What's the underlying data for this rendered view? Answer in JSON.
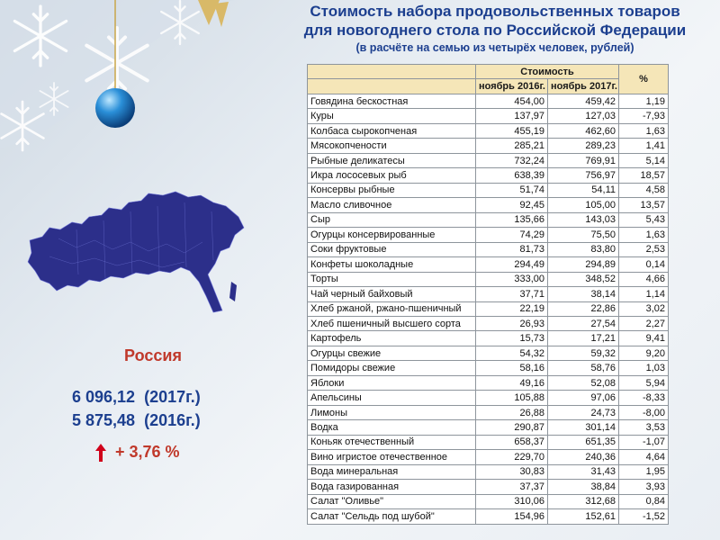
{
  "title": {
    "line1": "Стоимость набора продовольственных товаров",
    "line2": "для новогоднего стола по Российской Федерации",
    "line3": "(в расчёте на семью из четырёх человек, рублей)"
  },
  "summary": {
    "country": "Россия",
    "total_2017": "6 096,12  (2017г.)",
    "total_2016": "5 875,48  (2016г.)",
    "change": "+ 3,76 %"
  },
  "colors": {
    "title": "#1c3f8f",
    "accent": "#c0392b",
    "header_bg": "#f5e6b8",
    "map": "#2c2f8a"
  },
  "table": {
    "header_cost": "Стоимость",
    "header_percent": "%",
    "col_2016": "ноябрь 2016г.",
    "col_2017": "ноябрь 2017г.",
    "rows": [
      {
        "name": "Говядина бескостная",
        "v2016": "454,00",
        "v2017": "459,42",
        "pct": "1,19"
      },
      {
        "name": "Куры",
        "v2016": "137,97",
        "v2017": "127,03",
        "pct": "-7,93"
      },
      {
        "name": "Колбаса сырокопченая",
        "v2016": "455,19",
        "v2017": "462,60",
        "pct": "1,63"
      },
      {
        "name": "Мясокопчености",
        "v2016": "285,21",
        "v2017": "289,23",
        "pct": "1,41"
      },
      {
        "name": "Рыбные деликатесы",
        "v2016": "732,24",
        "v2017": "769,91",
        "pct": "5,14"
      },
      {
        "name": "Икра лососевых рыб",
        "v2016": "638,39",
        "v2017": "756,97",
        "pct": "18,57"
      },
      {
        "name": "Консервы рыбные",
        "v2016": "51,74",
        "v2017": "54,11",
        "pct": "4,58"
      },
      {
        "name": "Масло сливочное",
        "v2016": "92,45",
        "v2017": "105,00",
        "pct": "13,57"
      },
      {
        "name": "Сыр",
        "v2016": "135,66",
        "v2017": "143,03",
        "pct": "5,43"
      },
      {
        "name": "Огурцы консервированные",
        "v2016": "74,29",
        "v2017": "75,50",
        "pct": "1,63"
      },
      {
        "name": "Соки фруктовые",
        "v2016": "81,73",
        "v2017": "83,80",
        "pct": "2,53"
      },
      {
        "name": "Конфеты шоколадные",
        "v2016": "294,49",
        "v2017": "294,89",
        "pct": "0,14"
      },
      {
        "name": "Торты",
        "v2016": "333,00",
        "v2017": "348,52",
        "pct": "4,66"
      },
      {
        "name": "Чай черный байховый",
        "v2016": "37,71",
        "v2017": "38,14",
        "pct": "1,14"
      },
      {
        "name": "Хлеб ржаной, ржано-пшеничный",
        "v2016": "22,19",
        "v2017": "22,86",
        "pct": "3,02"
      },
      {
        "name": "Хлеб пшеничный высшего сорта",
        "v2016": "26,93",
        "v2017": "27,54",
        "pct": "2,27"
      },
      {
        "name": "Картофель",
        "v2016": "15,73",
        "v2017": "17,21",
        "pct": "9,41"
      },
      {
        "name": "Огурцы свежие",
        "v2016": "54,32",
        "v2017": "59,32",
        "pct": "9,20"
      },
      {
        "name": "Помидоры свежие",
        "v2016": "58,16",
        "v2017": "58,76",
        "pct": "1,03"
      },
      {
        "name": "Яблоки",
        "v2016": "49,16",
        "v2017": "52,08",
        "pct": "5,94"
      },
      {
        "name": "Апельсины",
        "v2016": "105,88",
        "v2017": "97,06",
        "pct": "-8,33"
      },
      {
        "name": "Лимоны",
        "v2016": "26,88",
        "v2017": "24,73",
        "pct": "-8,00"
      },
      {
        "name": "Водка",
        "v2016": "290,87",
        "v2017": "301,14",
        "pct": "3,53"
      },
      {
        "name": "Коньяк отечественный",
        "v2016": "658,37",
        "v2017": "651,35",
        "pct": "-1,07"
      },
      {
        "name": "Вино игристое отечественное",
        "v2016": "229,70",
        "v2017": "240,36",
        "pct": "4,64"
      },
      {
        "name": "Вода минеральная",
        "v2016": "30,83",
        "v2017": "31,43",
        "pct": "1,95"
      },
      {
        "name": "Вода газированная",
        "v2016": "37,37",
        "v2017": "38,84",
        "pct": "3,93"
      },
      {
        "name": "Салат \"Оливье\"",
        "v2016": "310,06",
        "v2017": "312,68",
        "pct": "0,84"
      },
      {
        "name": "Салат \"Сельдь под шубой\"",
        "v2016": "154,96",
        "v2017": "152,61",
        "pct": "-1,52"
      }
    ]
  }
}
